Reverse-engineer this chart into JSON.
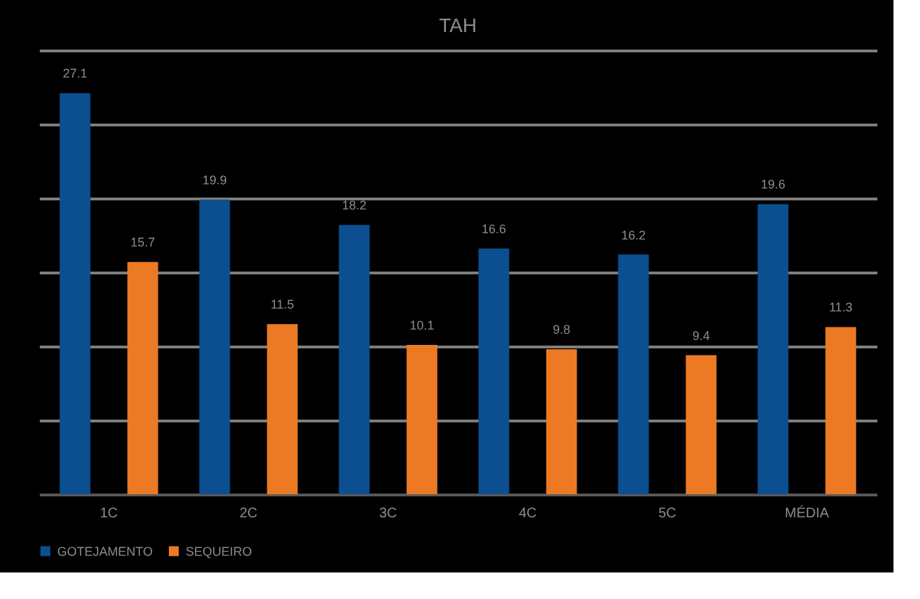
{
  "chart_data": {
    "type": "bar",
    "title": "TAH",
    "categories": [
      "1C",
      "2C",
      "3C",
      "4C",
      "5C",
      "MÉDIA"
    ],
    "series": [
      {
        "name": "GOTEJAMENTO",
        "color": "#0b4f91",
        "values": [
          27.1,
          19.9,
          18.2,
          16.6,
          16.2,
          19.6
        ]
      },
      {
        "name": "SEQUEIRO",
        "color": "#ec7a24",
        "values": [
          15.7,
          11.5,
          10.1,
          9.8,
          9.4,
          11.3
        ]
      }
    ],
    "ylim": [
      0,
      30
    ],
    "yticks": [
      0,
      5,
      10,
      15,
      20,
      25,
      30
    ],
    "grid": "y",
    "tick_labels": "x",
    "legend": "bottom",
    "data_labels": true
  }
}
